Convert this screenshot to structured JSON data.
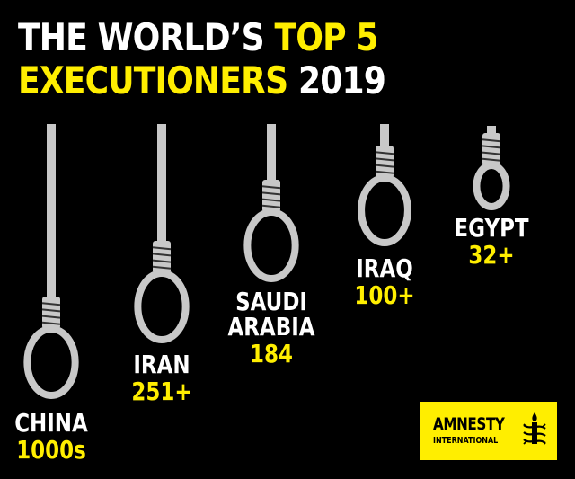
{
  "chart_data": {
    "type": "bar",
    "title_parts": [
      "THE WORLD’S ",
      "TOP 5",
      "EXECUTIONERS",
      " 2019"
    ],
    "categories": [
      {
        "name_lines": [
          "CHINA"
        ],
        "value_label": "1000s",
        "value": 1000
      },
      {
        "name_lines": [
          "IRAN"
        ],
        "value_label": "251+",
        "value": 251
      },
      {
        "name_lines": [
          "SAUDI",
          "ARABIA"
        ],
        "value_label": "184",
        "value": 184
      },
      {
        "name_lines": [
          "IRAQ"
        ],
        "value_label": "100+",
        "value": 100
      },
      {
        "name_lines": [
          "EGYPT"
        ],
        "value_label": "32+",
        "value": 32
      }
    ]
  },
  "logo": {
    "line1": "AMNESTY",
    "line2": "INTERNATIONAL",
    "icon": "candle-in-barbed-wire-icon"
  },
  "colors": {
    "background": "#000000",
    "accent": "#ffee00",
    "text": "#ffffff",
    "rope": "#c8c8c8"
  }
}
